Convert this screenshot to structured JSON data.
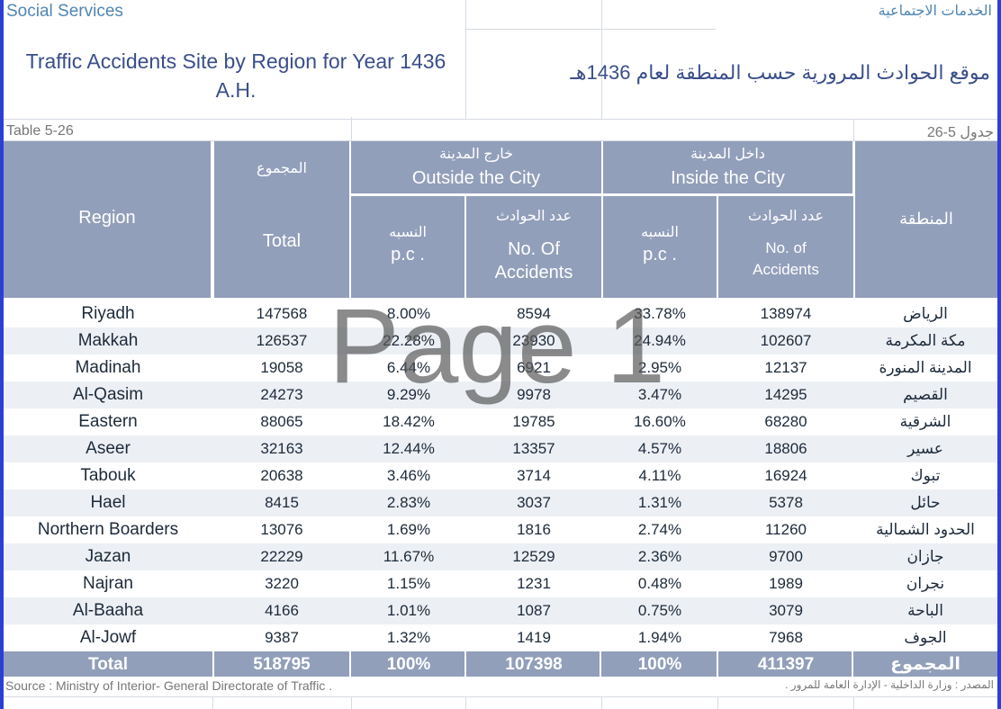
{
  "header": {
    "section_en": "Social Services",
    "section_ar": "الخدمات الاجتماعية",
    "title_en": "Traffic Accidents Site by Region for Year 1436 A.H.",
    "title_ar": "موقع الحوادث المرورية حسب المنطقة لعام 1436هـ",
    "table_en": "Table 5-26",
    "table_ar": "جدول 5-26"
  },
  "columns": {
    "region_en": "Region",
    "region_ar": "المنطقة",
    "total_ar": "المجموع",
    "total_en": "Total",
    "outside_ar": "خارج المدينة",
    "outside_en": "Outside the City",
    "inside_ar": "داخل المدينة",
    "inside_en": "Inside the City",
    "pc_ar": "النسبه",
    "pc_en": "p.c .",
    "num_ar": "عدد الحوادث",
    "num_en_outside": "No. Of Accidents",
    "num_en_inside": "No. of Accidents"
  },
  "rows": [
    {
      "region": "Riyadh",
      "total": "147568",
      "out_pc": "8.00%",
      "out_num": "8594",
      "in_pc": "33.78%",
      "in_num": "138974",
      "region_ar": "الرياض"
    },
    {
      "region": "Makkah",
      "total": "126537",
      "out_pc": "22.28%",
      "out_num": "23930",
      "in_pc": "24.94%",
      "in_num": "102607",
      "region_ar": "مكة المكرمة"
    },
    {
      "region": "Madinah",
      "total": "19058",
      "out_pc": "6.44%",
      "out_num": "6921",
      "in_pc": "2.95%",
      "in_num": "12137",
      "region_ar": "المدينة المنورة"
    },
    {
      "region": "Al-Qasim",
      "total": "24273",
      "out_pc": "9.29%",
      "out_num": "9978",
      "in_pc": "3.47%",
      "in_num": "14295",
      "region_ar": "القصيم"
    },
    {
      "region": "Eastern",
      "total": "88065",
      "out_pc": "18.42%",
      "out_num": "19785",
      "in_pc": "16.60%",
      "in_num": "68280",
      "region_ar": "الشرقية"
    },
    {
      "region": "Aseer",
      "total": "32163",
      "out_pc": "12.44%",
      "out_num": "13357",
      "in_pc": "4.57%",
      "in_num": "18806",
      "region_ar": "عسير"
    },
    {
      "region": "Tabouk",
      "total": "20638",
      "out_pc": "3.46%",
      "out_num": "3714",
      "in_pc": "4.11%",
      "in_num": "16924",
      "region_ar": "تبوك"
    },
    {
      "region": "Hael",
      "total": "8415",
      "out_pc": "2.83%",
      "out_num": "3037",
      "in_pc": "1.31%",
      "in_num": "5378",
      "region_ar": "حائل"
    },
    {
      "region": "Northern Boarders",
      "total": "13076",
      "out_pc": "1.69%",
      "out_num": "1816",
      "in_pc": "2.74%",
      "in_num": "11260",
      "region_ar": "الحدود الشمالية"
    },
    {
      "region": "Jazan",
      "total": "22229",
      "out_pc": "11.67%",
      "out_num": "12529",
      "in_pc": "2.36%",
      "in_num": "9700",
      "region_ar": "جازان"
    },
    {
      "region": "Najran",
      "total": "3220",
      "out_pc": "1.15%",
      "out_num": "1231",
      "in_pc": "0.48%",
      "in_num": "1989",
      "region_ar": "نجران"
    },
    {
      "region": "Al-Baaha",
      "total": "4166",
      "out_pc": "1.01%",
      "out_num": "1087",
      "in_pc": "0.75%",
      "in_num": "3079",
      "region_ar": "الباحة"
    },
    {
      "region": "Al-Jowf",
      "total": "9387",
      "out_pc": "1.32%",
      "out_num": "1419",
      "in_pc": "1.94%",
      "in_num": "7968",
      "region_ar": "الجوف"
    }
  ],
  "total_row": {
    "region": "Total",
    "total": "518795",
    "out_pc": "100%",
    "out_num": "107398",
    "in_pc": "100%",
    "in_num": "411397",
    "region_ar": "المجموع"
  },
  "watermark": "Page 1",
  "source": {
    "en": "Source : Ministry of Interior- General Directorate of Traffic .",
    "ar": "المصدر : وزارة الداخلية - الإدارة العامة للمرور ."
  },
  "colors": {
    "header_bg": "#929fba",
    "alt_row": "#eceff4",
    "frame": "#2b3fd6",
    "title": "#3a4f8a"
  }
}
